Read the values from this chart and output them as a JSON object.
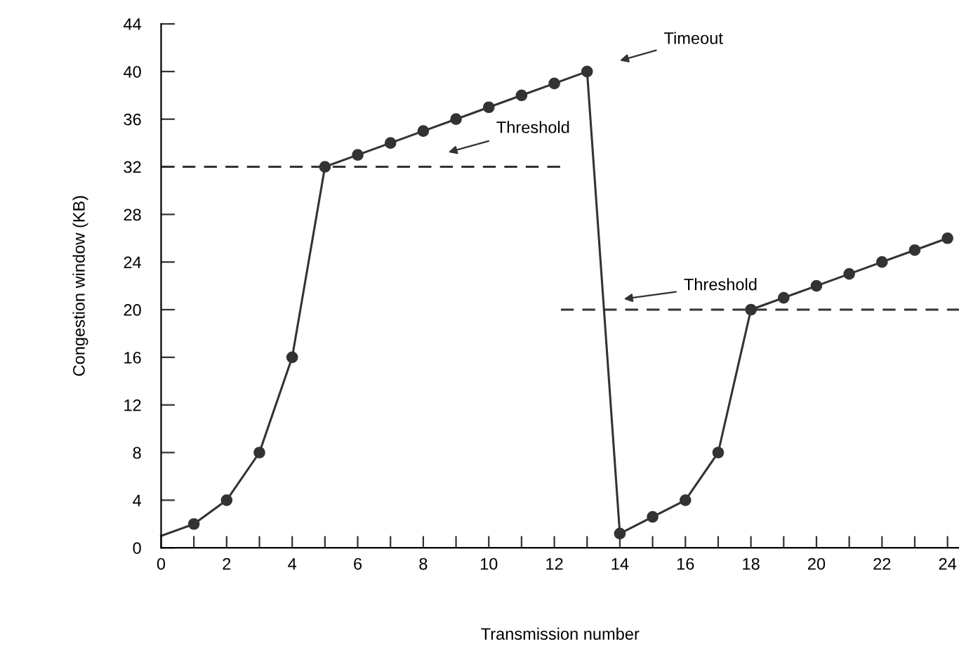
{
  "chart_data": {
    "type": "line",
    "xlabel": "Transmission number",
    "ylabel": "Congestion window (KB)",
    "series": [
      {
        "color": "#333333",
        "line_style": "solid",
        "x": [
          0,
          1
        ],
        "values": [
          1,
          2
        ]
      },
      {
        "color": "#333333",
        "marker": "circle",
        "line_style": "solid",
        "x": [
          1,
          2,
          3,
          4,
          5,
          6,
          7,
          8,
          9,
          10,
          11,
          12,
          13,
          14,
          15,
          16,
          17,
          18,
          19,
          20,
          21,
          22,
          23,
          24
        ],
        "values": [
          2,
          4,
          8,
          16,
          32,
          33,
          34,
          35,
          36,
          37,
          38,
          39,
          40,
          1.2,
          2.6,
          4,
          8,
          20,
          21,
          22,
          23,
          24,
          25,
          26
        ]
      },
      {
        "color": "#333333",
        "line_style": "dashed",
        "x": [
          0,
          12.2
        ],
        "values": [
          32,
          32
        ]
      },
      {
        "color": "#333333",
        "line_style": "dashed",
        "x": [
          12.2,
          24.35
        ],
        "values": [
          20,
          20
        ]
      }
    ],
    "annotations": [
      "Timeout",
      "Threshold",
      "Threshold"
    ],
    "xlim": [
      0,
      24.35
    ],
    "ylim": [
      0,
      44
    ],
    "xticks": [
      0,
      {
        "value": 1,
        "label": null
      },
      2,
      {
        "value": 3,
        "label": null
      },
      4,
      {
        "value": 5,
        "label": null
      },
      6,
      {
        "value": 7,
        "label": null
      },
      8,
      {
        "value": 9,
        "label": null
      },
      10,
      {
        "value": 11,
        "label": null
      },
      12,
      {
        "value": 13,
        "label": null
      },
      14,
      {
        "value": 15,
        "label": null
      },
      16,
      {
        "value": 17,
        "label": null
      },
      18,
      {
        "value": 19,
        "label": null
      },
      20,
      {
        "value": 21,
        "label": null
      },
      22,
      {
        "value": 23,
        "label": null
      },
      24
    ],
    "yticks": [
      0,
      4,
      8,
      12,
      16,
      20,
      24,
      28,
      32,
      36,
      40,
      44
    ],
    "grid": false,
    "legend": false
  }
}
